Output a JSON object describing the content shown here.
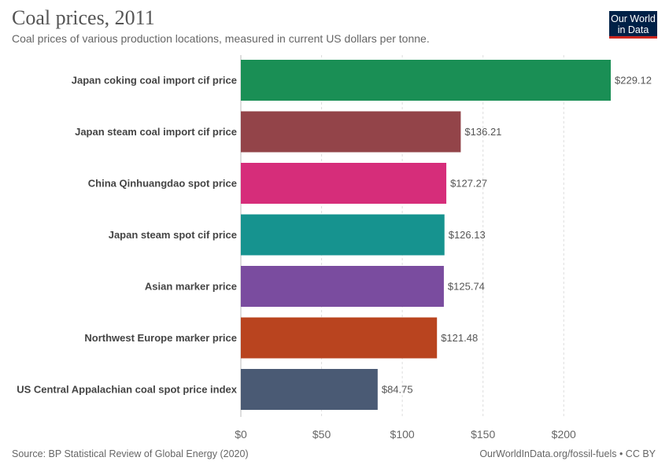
{
  "header": {
    "title": "Coal prices, 2011",
    "subtitle": "Coal prices of various production locations, measured in current US dollars per tonne."
  },
  "logo": {
    "line1": "Our World",
    "line2": "in Data",
    "bg_color": "#002147",
    "accent_color": "#ce261e"
  },
  "footer": {
    "source": "Source: BP Statistical Review of Global Energy (2020)",
    "credit": "OurWorldInData.org/fossil-fuels • CC BY"
  },
  "chart_data": {
    "type": "bar",
    "orientation": "horizontal",
    "categories": [
      "Japan coking coal import cif price",
      "Japan steam coal import cif price",
      "China Qinhuangdao spot price",
      "Japan steam spot cif price",
      "Asian marker price",
      "Northwest Europe marker price",
      "US Central Appalachian coal spot price index"
    ],
    "values": [
      229.12,
      136.21,
      127.27,
      126.13,
      125.74,
      121.48,
      84.75
    ],
    "value_labels": [
      "$229.12",
      "$136.21",
      "$127.27",
      "$126.13",
      "$125.74",
      "$121.48",
      "$84.75"
    ],
    "colors": [
      "#1a8f55",
      "#934449",
      "#d62d7a",
      "#16938f",
      "#7a4c9f",
      "#b9441f",
      "#4a5a74"
    ],
    "x_ticks": [
      0,
      50,
      100,
      150,
      200
    ],
    "x_tick_labels": [
      "$0",
      "$50",
      "$100",
      "$150",
      "$200"
    ],
    "xlim": [
      0,
      229.12
    ],
    "grid": true
  }
}
